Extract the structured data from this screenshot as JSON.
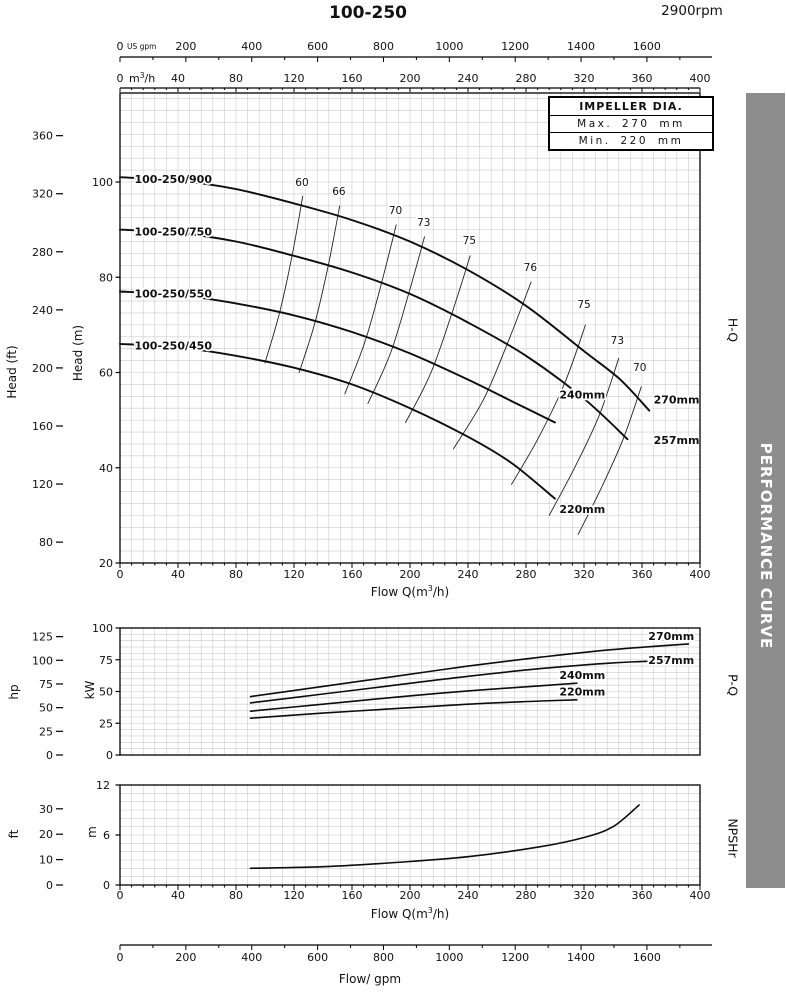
{
  "header": {
    "title": "100-250",
    "rpm": "2900rpm"
  },
  "banner": {
    "text": "PERFORMANCE CURVE",
    "bg": "#8d8d8d",
    "fg": "#ffffff"
  },
  "impeller_box": {
    "title": "IMPELLER DIA.",
    "max_label": "Max. 270 mm",
    "min_label": "Min. 220 mm"
  },
  "side_labels": {
    "hq": "H-Q",
    "pq": "P-Q",
    "npshr": "NPSHr"
  },
  "axis_labels": {
    "head_ft": "Head (ft)",
    "head_m": "Head (m)",
    "hp": "hp",
    "kw": "kW",
    "ft": "ft",
    "m": "m",
    "flow_main_pre": "Flow Q(m",
    "flow_sup": "3",
    "flow_post": "/h)",
    "flow_gpm": "Flow/ gpm",
    "gpm_unit": "US gpm",
    "m3h_unit_pre": "m",
    "m3h_unit_sup": "3",
    "m3h_unit_post": "/h"
  },
  "chart_data": [
    {
      "id": "hq",
      "type": "line",
      "title": "H-Q",
      "x_axis": {
        "label": "Flow Q(m3/h)",
        "min": 0,
        "max": 400,
        "ticks": [
          0,
          40,
          80,
          120,
          160,
          200,
          240,
          280,
          320,
          360,
          400
        ],
        "unit": "m3/h"
      },
      "x_axis_top_gpm": {
        "label": "US gpm",
        "ticks": [
          0,
          200,
          400,
          600,
          800,
          1000,
          1200,
          1400,
          1600
        ]
      },
      "y_axis_m": {
        "label": "Head (m)",
        "min": 20,
        "max": 118,
        "ticks": [
          20,
          40,
          60,
          80,
          100
        ]
      },
      "y_axis_ft": {
        "label": "Head (ft)",
        "ticks": [
          80,
          120,
          160,
          200,
          240,
          280,
          320,
          360
        ]
      },
      "series": [
        {
          "name": "100-250/900",
          "impeller": "270mm",
          "points": [
            [
              0,
              101
            ],
            [
              40,
              100.3
            ],
            [
              80,
              98.5
            ],
            [
              120,
              95.5
            ],
            [
              160,
              92
            ],
            [
              200,
              87.5
            ],
            [
              240,
              81.5
            ],
            [
              280,
              74
            ],
            [
              320,
              64.5
            ],
            [
              345,
              58.5
            ],
            [
              365,
              52
            ]
          ],
          "name_label": {
            "text": "100-250/900",
            "pos": [
              10,
              99.8
            ]
          },
          "end_label": {
            "text": "270mm",
            "pos": [
              368,
              53.5
            ],
            "anchor": "start"
          }
        },
        {
          "name": "100-250/750",
          "impeller": "257mm",
          "points": [
            [
              0,
              90
            ],
            [
              40,
              89.3
            ],
            [
              80,
              87.5
            ],
            [
              120,
              84.5
            ],
            [
              160,
              81
            ],
            [
              200,
              76.5
            ],
            [
              240,
              70.5
            ],
            [
              280,
              63.5
            ],
            [
              320,
              54.5
            ],
            [
              350,
              46
            ]
          ],
          "name_label": {
            "text": "100-250/750",
            "pos": [
              10,
              88.8
            ]
          },
          "end_label": {
            "text": "257mm",
            "pos": [
              368,
              45
            ],
            "anchor": "start"
          }
        },
        {
          "name": "100-250/550",
          "impeller": "240mm",
          "points": [
            [
              0,
              77
            ],
            [
              40,
              76.3
            ],
            [
              80,
              74.5
            ],
            [
              120,
              72
            ],
            [
              160,
              68.5
            ],
            [
              200,
              64
            ],
            [
              240,
              58.5
            ],
            [
              270,
              54
            ],
            [
              300,
              49.5
            ]
          ],
          "name_label": {
            "text": "100-250/550",
            "pos": [
              10,
              75.8
            ]
          },
          "end_label": {
            "text": "240mm",
            "pos": [
              303,
              54.5
            ],
            "anchor": "start"
          }
        },
        {
          "name": "100-250/450",
          "impeller": "220mm",
          "points": [
            [
              0,
              66
            ],
            [
              40,
              65.3
            ],
            [
              80,
              63.5
            ],
            [
              120,
              61
            ],
            [
              160,
              57.5
            ],
            [
              200,
              52.5
            ],
            [
              240,
              46.5
            ],
            [
              270,
              41
            ],
            [
              300,
              33.5
            ]
          ],
          "name_label": {
            "text": "100-250/450",
            "pos": [
              10,
              64.8
            ]
          },
          "end_label": {
            "text": "220mm",
            "pos": [
              303,
              30.5
            ],
            "anchor": "start"
          }
        }
      ],
      "efficiency_contours": [
        {
          "value": 60,
          "points": [
            [
              126,
              97
            ],
            [
              119,
              85
            ],
            [
              110,
              72.5
            ],
            [
              100,
              62
            ]
          ]
        },
        {
          "value": 66,
          "points": [
            [
              151.5,
              95
            ],
            [
              144,
              83
            ],
            [
              134.5,
              70.5
            ],
            [
              123.5,
              60
            ]
          ]
        },
        {
          "value": 70,
          "points": [
            [
              190.5,
              91
            ],
            [
              181,
              79.5
            ],
            [
              169,
              66.5
            ],
            [
              155,
              55.5
            ]
          ]
        },
        {
          "value": 73,
          "points": [
            [
              210,
              88.5
            ],
            [
              199.5,
              77
            ],
            [
              186.5,
              64
            ],
            [
              171,
              53.5
            ]
          ]
        },
        {
          "value": 75,
          "points": [
            [
              241.5,
              84.5
            ],
            [
              229.5,
              73
            ],
            [
              214.5,
              60
            ],
            [
              197,
              49.5
            ]
          ]
        },
        {
          "value": 76,
          "points": [
            [
              283.5,
              79
            ],
            [
              269,
              67.5
            ],
            [
              251,
              54.5
            ],
            [
              230,
              44
            ]
          ]
        },
        {
          "value": 75,
          "points": [
            [
              321,
              70
            ],
            [
              307,
              58
            ],
            [
              289,
              46.5
            ],
            [
              270,
              36.5
            ]
          ]
        },
        {
          "value": 73,
          "points": [
            [
              344,
              63
            ],
            [
              330.5,
              51
            ],
            [
              313.5,
              40
            ],
            [
              296,
              30
            ]
          ]
        },
        {
          "value": 70,
          "points": [
            [
              359.5,
              57
            ],
            [
              347,
              46
            ],
            [
              331.5,
              35.5
            ],
            [
              316,
              26
            ]
          ]
        }
      ],
      "efficiency_labels": [
        {
          "text": "60",
          "pos": [
            125.5,
            99.2
          ]
        },
        {
          "text": "66",
          "pos": [
            151,
            97.3
          ]
        },
        {
          "text": "70",
          "pos": [
            190,
            93.3
          ]
        },
        {
          "text": "73",
          "pos": [
            209.5,
            90.8
          ]
        },
        {
          "text": "75",
          "pos": [
            241,
            87
          ]
        },
        {
          "text": "76",
          "pos": [
            283,
            81.3
          ]
        },
        {
          "text": "75",
          "pos": [
            320,
            73.5
          ]
        },
        {
          "text": "73",
          "pos": [
            343,
            66
          ]
        },
        {
          "text": "70",
          "pos": [
            358.5,
            60.3
          ]
        }
      ]
    },
    {
      "id": "pq",
      "type": "line",
      "title": "P-Q",
      "y_axis_kw": {
        "label": "kW",
        "min": 0,
        "max": 100,
        "ticks": [
          0,
          25,
          50,
          75,
          100
        ]
      },
      "y_axis_hp": {
        "label": "hp",
        "ticks": [
          0,
          25,
          50,
          75,
          100,
          125
        ]
      },
      "series": [
        {
          "name": "270mm",
          "points": [
            [
              90,
              46
            ],
            [
              140,
              54
            ],
            [
              190,
              62
            ],
            [
              240,
              70
            ],
            [
              290,
              77
            ],
            [
              340,
              83
            ],
            [
              392,
              87.5
            ]
          ],
          "end_label": {
            "text": "270mm",
            "pos": [
              396,
              90.5
            ],
            "anchor": "end"
          }
        },
        {
          "name": "257mm",
          "points": [
            [
              90,
              41
            ],
            [
              140,
              48
            ],
            [
              190,
              55
            ],
            [
              240,
              62
            ],
            [
              290,
              68
            ],
            [
              340,
              72.5
            ],
            [
              392,
              75
            ]
          ],
          "end_label": {
            "text": "257mm",
            "pos": [
              396,
              71.5
            ],
            "anchor": "end"
          }
        },
        {
          "name": "240mm",
          "points": [
            [
              90,
              34.5
            ],
            [
              140,
              40
            ],
            [
              190,
              45.5
            ],
            [
              240,
              50.5
            ],
            [
              290,
              54.5
            ],
            [
              315,
              56.5
            ]
          ],
          "end_label": {
            "text": "240mm",
            "pos": [
              303,
              60
            ],
            "anchor": "start"
          }
        },
        {
          "name": "220mm",
          "points": [
            [
              90,
              29
            ],
            [
              140,
              33
            ],
            [
              190,
              36.5
            ],
            [
              240,
              40
            ],
            [
              290,
              42.5
            ],
            [
              315,
              43.5
            ]
          ],
          "end_label": {
            "text": "220mm",
            "pos": [
              303,
              47
            ],
            "anchor": "start"
          }
        }
      ]
    },
    {
      "id": "npshr",
      "type": "line",
      "title": "NPSHr",
      "x_axis": {
        "label": "Flow Q(m3/h)",
        "min": 0,
        "max": 400,
        "ticks": [
          0,
          40,
          80,
          120,
          160,
          200,
          240,
          280,
          320,
          360,
          400
        ]
      },
      "y_axis_m": {
        "label": "m",
        "min": 0,
        "max": 12,
        "ticks": [
          0,
          6,
          12
        ]
      },
      "y_axis_ft": {
        "label": "ft",
        "ticks": [
          0,
          10,
          20,
          30
        ]
      },
      "series": [
        {
          "name": "NPSHr",
          "points": [
            [
              90,
              2
            ],
            [
              140,
              2.2
            ],
            [
              190,
              2.7
            ],
            [
              240,
              3.4
            ],
            [
              290,
              4.6
            ],
            [
              320,
              5.7
            ],
            [
              340,
              7
            ],
            [
              358,
              9.6
            ]
          ]
        }
      ]
    },
    {
      "id": "flow-gpm-axis",
      "type": "axis",
      "title": "Flow/ gpm",
      "ticks": [
        0,
        200,
        400,
        600,
        800,
        1000,
        1200,
        1400,
        1600
      ]
    }
  ]
}
